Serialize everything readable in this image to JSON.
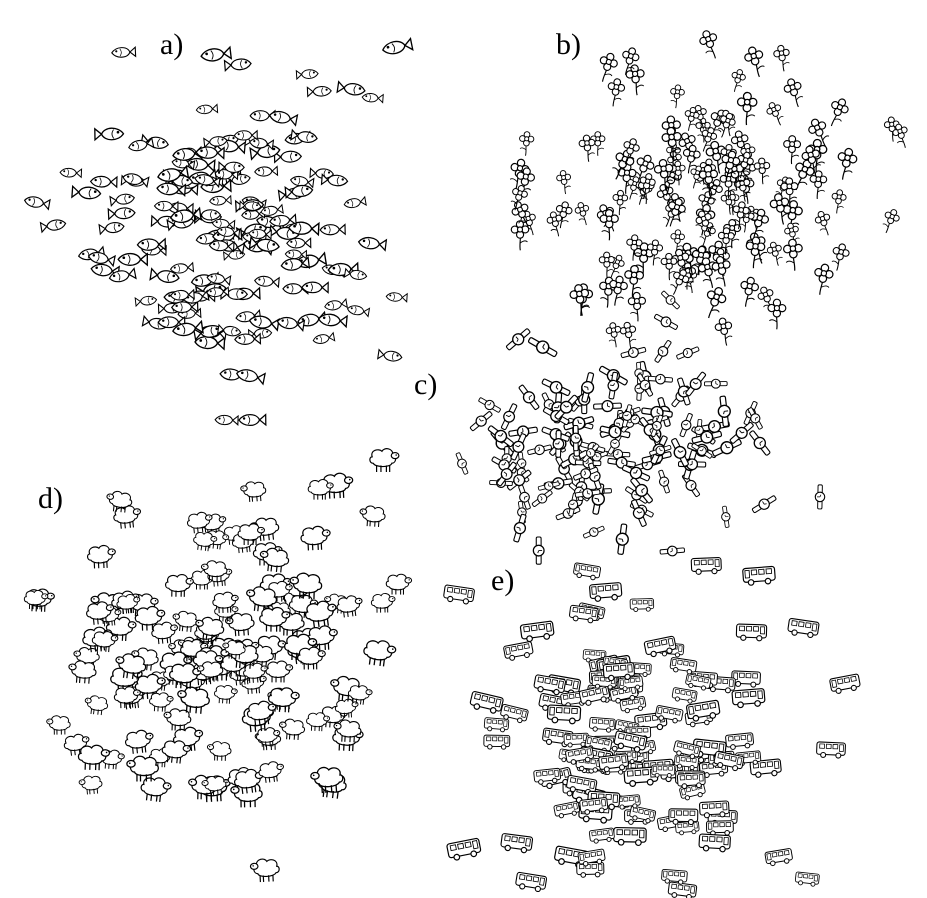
{
  "figure": {
    "panels": [
      {
        "id": "a",
        "label": "a)",
        "subject": "fish",
        "icon": "fish-icon",
        "cluster_density": "dense"
      },
      {
        "id": "b",
        "label": "b)",
        "subject": "flower",
        "icon": "flower-icon",
        "cluster_density": "dense"
      },
      {
        "id": "c",
        "label": "c)",
        "subject": "watch",
        "icon": "watch-icon",
        "cluster_density": "dense"
      },
      {
        "id": "d",
        "label": "d)",
        "subject": "sheep",
        "icon": "sheep-icon",
        "cluster_density": "dense"
      },
      {
        "id": "e",
        "label": "e)",
        "subject": "bus",
        "icon": "bus-icon",
        "cluster_density": "dense"
      }
    ],
    "colors": {
      "ink": "#000000",
      "background": "#ffffff"
    }
  }
}
